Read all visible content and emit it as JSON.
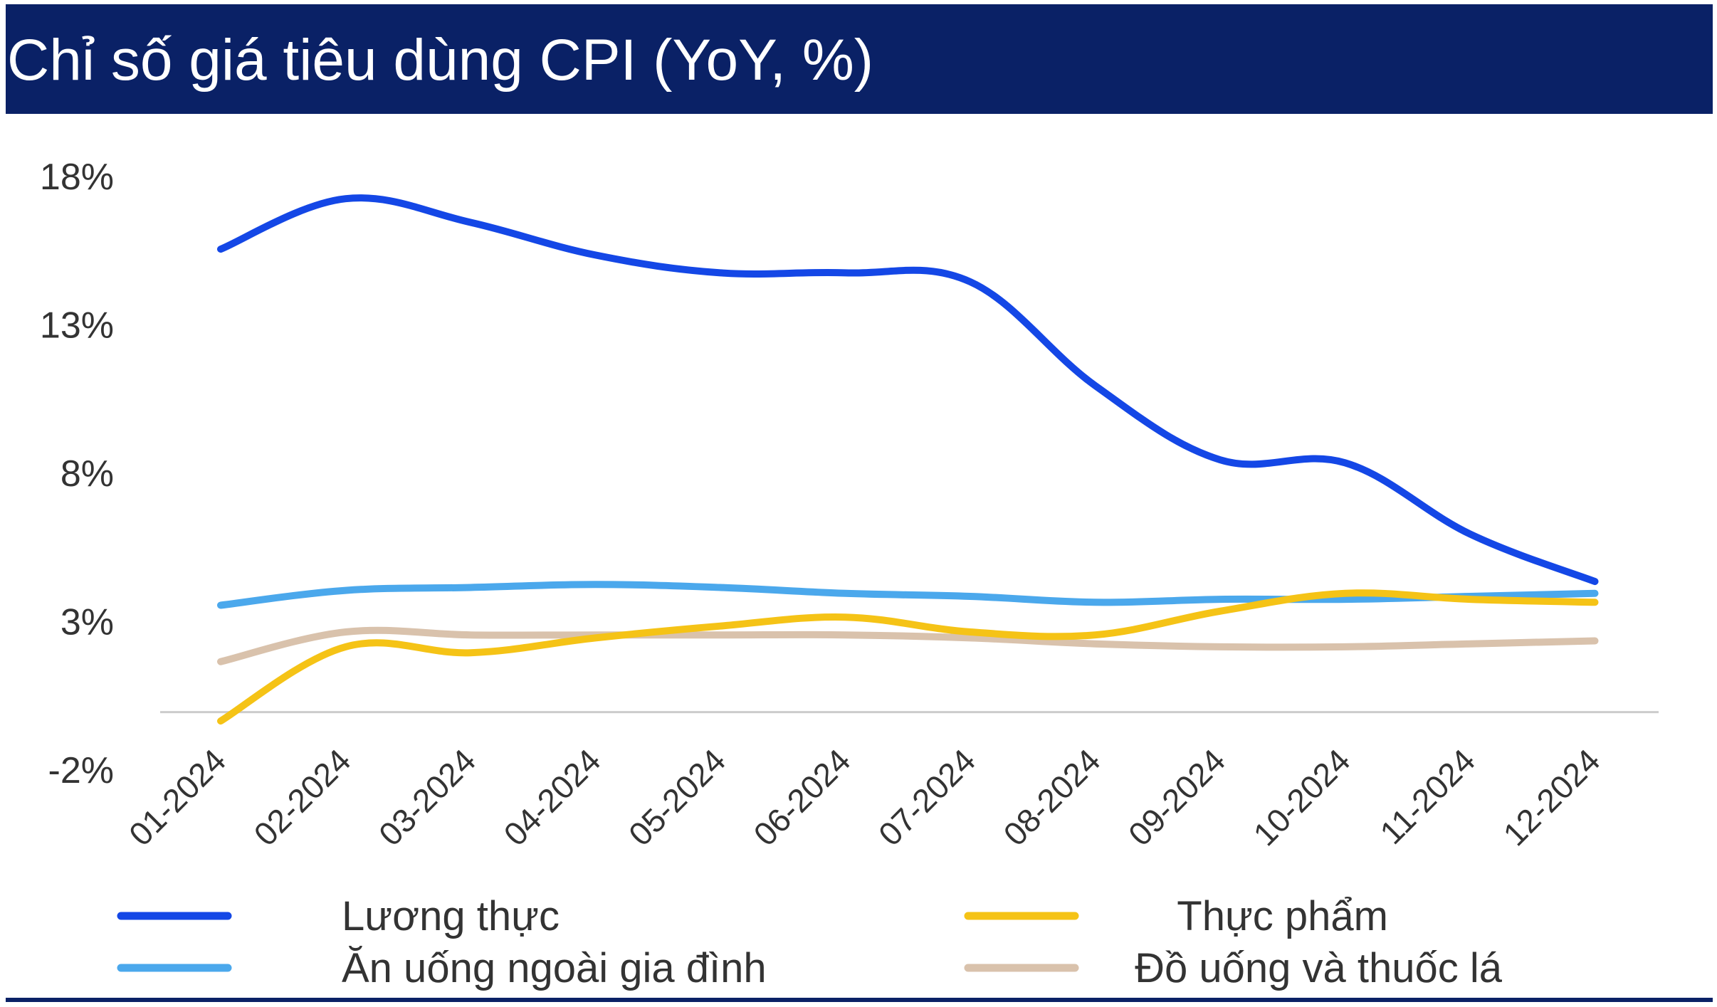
{
  "colors": {
    "header_bg": "#0a2166",
    "header_text": "#ffffff",
    "axis_text": "#333333",
    "zero_line": "#cccccc",
    "bottom_rule": "#0a2166"
  },
  "chart_data": {
    "type": "line",
    "title": "Chỉ số giá tiêu dùng CPI (YoY, %)",
    "xlabel": "",
    "ylabel": "",
    "categories": [
      "01-2024",
      "02-2024",
      "03-2024",
      "04-2024",
      "05-2024",
      "06-2024",
      "07-2024",
      "08-2024",
      "09-2024",
      "10-2024",
      "11-2024",
      "12-2024"
    ],
    "ylim": [
      -2,
      18
    ],
    "yticks": [
      18,
      13,
      8,
      3,
      -2
    ],
    "ytick_labels": [
      "18%",
      "13%",
      "8%",
      "3%",
      "-2%"
    ],
    "zero_line": true,
    "grid": false,
    "legend_position": "bottom",
    "series": [
      {
        "name": "Lương thực",
        "color": "#1447e6",
        "values": [
          15.6,
          17.3,
          16.5,
          15.4,
          14.8,
          14.8,
          14.5,
          11.0,
          8.5,
          8.4,
          6.0,
          4.4
        ]
      },
      {
        "name": "Thực phẩm",
        "color": "#f5c316",
        "values": [
          -0.3,
          2.2,
          2.0,
          2.5,
          2.9,
          3.2,
          2.7,
          2.6,
          3.4,
          4.0,
          3.8,
          3.7
        ]
      },
      {
        "name": "Ăn uống ngoài gia đình",
        "color": "#4ba8ec",
        "values": [
          3.6,
          4.1,
          4.2,
          4.3,
          4.2,
          4.0,
          3.9,
          3.7,
          3.8,
          3.8,
          3.9,
          4.0
        ]
      },
      {
        "name": "Đồ uống và thuốc lá",
        "color": "#d9c2ac",
        "values": [
          1.7,
          2.7,
          2.6,
          2.6,
          2.6,
          2.6,
          2.5,
          2.3,
          2.2,
          2.2,
          2.3,
          2.4
        ]
      }
    ],
    "legend_order": [
      0,
      1,
      2,
      3
    ]
  }
}
